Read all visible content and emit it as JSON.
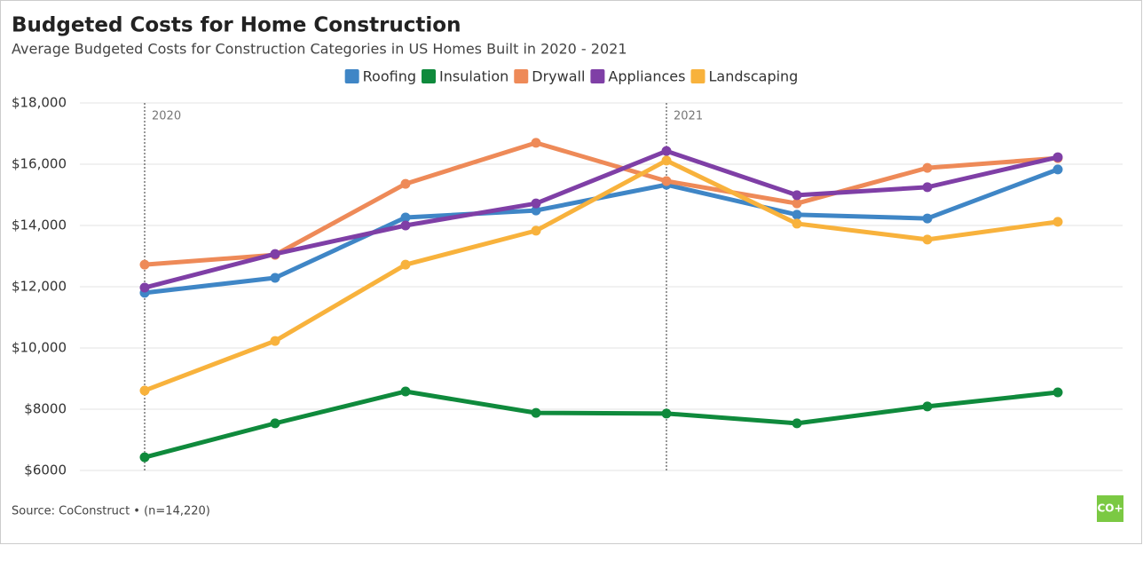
{
  "chart_data": {
    "type": "line",
    "title": "Budgeted Costs for Home Construction",
    "subtitle": "Average Budgeted Costs for Construction Categories in US Homes Built in 2020 - 2021",
    "categories": [
      null,
      null,
      null,
      null,
      null,
      null,
      null,
      null
    ],
    "series": [
      {
        "name": "Roofing",
        "color": "#3f86c6",
        "values": [
          11800,
          12290,
          14260,
          14490,
          15330,
          14350,
          14230,
          15830
        ]
      },
      {
        "name": "Insulation",
        "color": "#0f8a3c",
        "values": [
          6430,
          7540,
          8580,
          7880,
          7860,
          7540,
          8090,
          8550
        ]
      },
      {
        "name": "Drywall",
        "color": "#ee8a58",
        "values": [
          12720,
          13040,
          15360,
          16700,
          15450,
          14720,
          15880,
          16200
        ]
      },
      {
        "name": "Appliances",
        "color": "#7f3fa6",
        "values": [
          11970,
          13070,
          14000,
          14720,
          16430,
          14990,
          15250,
          16230
        ]
      },
      {
        "name": "Landscaping",
        "color": "#f8b23c",
        "values": [
          8610,
          10230,
          12720,
          13830,
          16120,
          14060,
          13540,
          14120
        ]
      }
    ],
    "ylim": [
      6000,
      18000
    ],
    "yticks": [
      {
        "value": 6000,
        "label": "$6000"
      },
      {
        "value": 8000,
        "label": "$8000"
      },
      {
        "value": 10000,
        "label": "$10,000"
      },
      {
        "value": 12000,
        "label": "$12,000"
      },
      {
        "value": 14000,
        "label": "$14,000"
      },
      {
        "value": 16000,
        "label": "$16,000"
      },
      {
        "value": 18000,
        "label": "$18,000"
      }
    ],
    "grid": true,
    "annotations": [
      "2020",
      "2021"
    ],
    "source": "Source: CoConstruct • (n=14,220)",
    "logo": "CO+"
  }
}
